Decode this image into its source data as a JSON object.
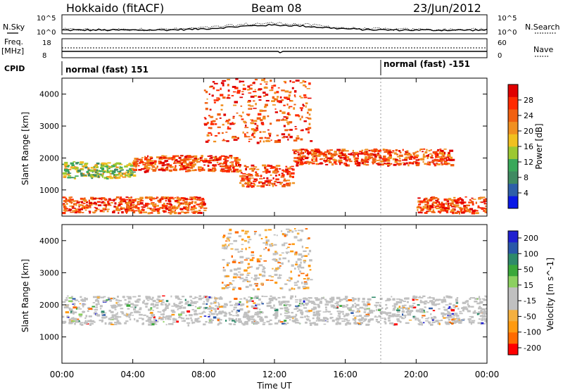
{
  "header": {
    "radar": "Hokkaido (fitACF)",
    "beam": "Beam 08",
    "date": "23/Jun/2012"
  },
  "top_panels": {
    "nsky_label": "N.Sky",
    "nsearch_label": "N.Search",
    "noise_ticks": [
      "10^5",
      "10^0"
    ],
    "freq_label": "Freq.",
    "freq_unit": "[MHz]",
    "freq_ticks": [
      "18",
      "8"
    ],
    "nave_label": "Nave",
    "nave_ticks": [
      "60",
      "0"
    ],
    "cpid_label": "CPID",
    "cpid_segments": [
      "normal (fast) 151",
      "normal (fast) -151"
    ]
  },
  "colors": {
    "power": [
      "#0a18e6",
      "#2e5fa8",
      "#3f8a62",
      "#3aa85a",
      "#9cc832",
      "#f0c020",
      "#f09020",
      "#f06010",
      "#ff2a00",
      "#e00000"
    ],
    "velocity": [
      "#ff0000",
      "#ff6a00",
      "#ff9a10",
      "#f4b040",
      "#c0c0c0",
      "#c0c0c0",
      "#8cd060",
      "#3aa83a",
      "#2e8a6a",
      "#2a58a8",
      "#2020d0"
    ]
  },
  "chart_data": [
    {
      "type": "heatmap",
      "name": "power",
      "xlabel": "",
      "ylabel": "Slant Range [km]",
      "xlim": [
        "00:00",
        "24:00"
      ],
      "ylim": [
        180,
        4500
      ],
      "yticks": [
        "1000",
        "2000",
        "3000",
        "4000"
      ],
      "colorbar_label": "Power [dB]",
      "colorbar_range": [
        0,
        32
      ],
      "colorbar_ticks": [
        "4",
        "8",
        "12",
        "16",
        "20",
        "24",
        "28"
      ],
      "features": [
        {
          "x_range": [
            "00:00",
            "04:00"
          ],
          "range_km": [
            1400,
            1900
          ],
          "level": "12-20 dB"
        },
        {
          "x_range": [
            "04:00",
            "10:00"
          ],
          "range_km": [
            1600,
            2100
          ],
          "level": "20-30 dB"
        },
        {
          "x_range": [
            "10:00",
            "13:00"
          ],
          "range_km": [
            1100,
            1800
          ],
          "level": "28 dB"
        },
        {
          "x_range": [
            "13:00",
            "22:00"
          ],
          "range_km": [
            1800,
            2300
          ],
          "level": "24-30 dB"
        },
        {
          "x_range": [
            "08:00",
            "14:00"
          ],
          "range_km": [
            2500,
            4500
          ],
          "level": "24-30 dB"
        },
        {
          "x_range": [
            "00:00",
            "08:00"
          ],
          "range_km": [
            300,
            800
          ],
          "level": "20-30 dB"
        },
        {
          "x_range": [
            "20:00",
            "24:00"
          ],
          "range_km": [
            300,
            800
          ],
          "level": "24-30 dB"
        }
      ]
    },
    {
      "type": "heatmap",
      "name": "velocity",
      "xlabel": "Time UT",
      "ylabel": "Slant Range [km]",
      "xlim": [
        "00:00",
        "24:00"
      ],
      "ylim": [
        180,
        4500
      ],
      "xticks": [
        "00:00",
        "04:00",
        "08:00",
        "12:00",
        "16:00",
        "20:00",
        "00:00"
      ],
      "yticks": [
        "1000",
        "2000",
        "3000",
        "4000"
      ],
      "colorbar_label": "Velocity [m s^-1]",
      "colorbar_ticks": [
        "200",
        "100",
        "50",
        "15",
        "-15",
        "-50",
        "-100",
        "-200"
      ],
      "features": [
        {
          "x_range": [
            "00:00",
            "24:00"
          ],
          "range_km": [
            1400,
            2300
          ],
          "level": "-15 to 15 m/s (ground scatter)"
        },
        {
          "x_range": [
            "09:00",
            "14:00"
          ],
          "range_km": [
            2500,
            4400
          ],
          "level": "-15 to -100 m/s"
        }
      ]
    }
  ]
}
